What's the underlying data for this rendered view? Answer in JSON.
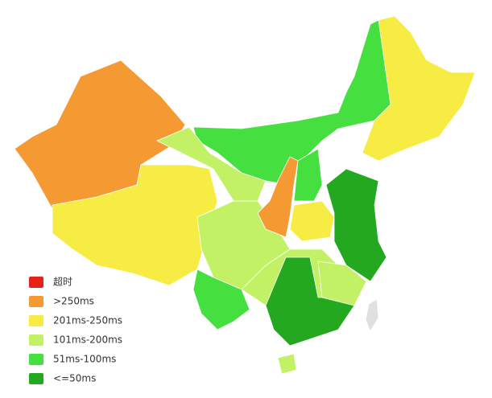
{
  "legend": {
    "items": [
      {
        "label": "超时",
        "color": "#e8221b"
      },
      {
        "label": ">250ms",
        "color": "#f59a33"
      },
      {
        "label": "201ms-250ms",
        "color": "#f6ec44"
      },
      {
        "label": "101ms-200ms",
        "color": "#c2f165"
      },
      {
        "label": "51ms-100ms",
        "color": "#45df3f"
      },
      {
        "label": "<=50ms",
        "color": "#23a820"
      }
    ]
  }
}
